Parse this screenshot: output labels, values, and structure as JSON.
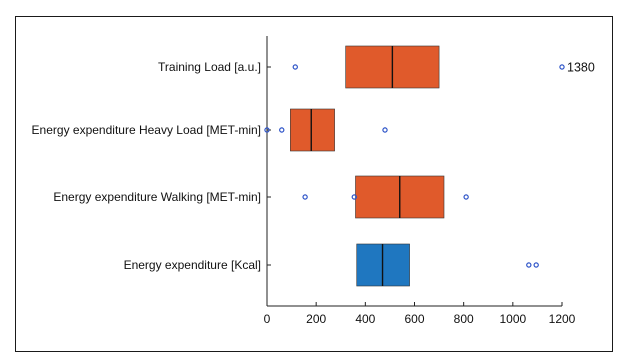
{
  "chart_data": {
    "type": "boxplot",
    "orientation": "horizontal",
    "categories": [
      "Training Load [a.u.]",
      "Energy expenditure Heavy Load [MET-min]",
      "Energy expenditure Walking [MET-min]",
      "Energy expenditure [Kcal]"
    ],
    "boxes": [
      {
        "category": "Training Load [a.u.]",
        "q1": 320,
        "median": 510,
        "q3": 700,
        "color": "#E05A2B",
        "outliers": [
          115,
          1200
        ]
      },
      {
        "category": "Energy expenditure Heavy Load [MET-min]",
        "q1": 95,
        "median": 180,
        "q3": 275,
        "color": "#E05A2B",
        "outliers": [
          0,
          60,
          480
        ]
      },
      {
        "category": "Energy expenditure Walking [MET-min]",
        "q1": 360,
        "median": 540,
        "q3": 720,
        "color": "#E05A2B",
        "outliers": [
          155,
          355,
          810
        ]
      },
      {
        "category": "Energy expenditure [Kcal]",
        "q1": 365,
        "median": 470,
        "q3": 580,
        "color": "#1F77C0",
        "outliers": [
          1065,
          1095
        ]
      }
    ],
    "xlim": [
      0,
      1200
    ],
    "xticks": [
      0,
      200,
      400,
      600,
      800,
      1000,
      1200
    ],
    "annotations": [
      {
        "text": "1380",
        "category": "Training Load [a.u.]",
        "x": 1200
      }
    ],
    "colors": {
      "orange": "#E05A2B",
      "blue": "#1F77C0",
      "outlier": "#2E54C8",
      "axis": "#222222"
    }
  }
}
